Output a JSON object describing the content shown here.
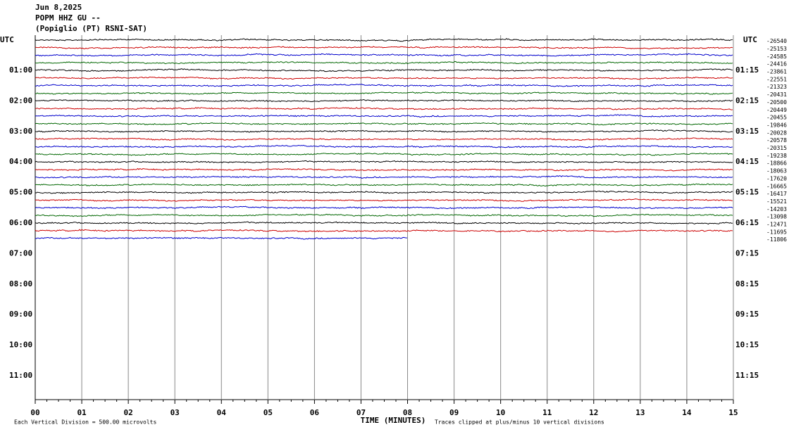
{
  "header": {
    "date": "Jun 8,2025",
    "station": "POPM HHZ GU --",
    "location": "(Popiglio (PT) RSNI-SAT)"
  },
  "left_axis": {
    "title": "UTC",
    "labels": [
      "01:00",
      "02:00",
      "03:00",
      "04:00",
      "05:00",
      "06:00",
      "07:00",
      "08:00",
      "09:00",
      "10:00",
      "11:00"
    ]
  },
  "right_axis": {
    "title": "UTC",
    "labels": [
      "01:15",
      "02:15",
      "03:15",
      "04:15",
      "05:15",
      "06:15",
      "07:15",
      "08:15",
      "09:15",
      "10:15",
      "11:15"
    ]
  },
  "x_axis": {
    "title": "TIME (MINUTES)",
    "ticks": [
      "00",
      "01",
      "02",
      "03",
      "04",
      "05",
      "06",
      "07",
      "08",
      "09",
      "10",
      "11",
      "12",
      "13",
      "14",
      "15"
    ]
  },
  "footer": {
    "scale_note": "Each Vertical Division =  500.00 microvolts",
    "clip_note": "Traces clipped at plus/minus 10 vertical divisions"
  },
  "trace_colors": [
    "#000000",
    "#cc0000",
    "#0000cc",
    "#006600"
  ],
  "traces": [
    {
      "label": "-26540"
    },
    {
      "label": "-25153"
    },
    {
      "label": "-24585"
    },
    {
      "label": "-24416"
    },
    {
      "label": "-23861"
    },
    {
      "label": "-22551"
    },
    {
      "label": "-21323"
    },
    {
      "label": "-20431"
    },
    {
      "label": "-20500"
    },
    {
      "label": "-20449"
    },
    {
      "label": "-20455"
    },
    {
      "label": "-19846"
    },
    {
      "label": "-20028"
    },
    {
      "label": "-20578"
    },
    {
      "label": "-20315"
    },
    {
      "label": "-19238"
    },
    {
      "label": "-18866"
    },
    {
      "label": "-18063"
    },
    {
      "label": "-17620"
    },
    {
      "label": "-16665"
    },
    {
      "label": "-16417"
    },
    {
      "label": "-15521"
    },
    {
      "label": "-14203"
    },
    {
      "label": "-13098"
    },
    {
      "label": "-12471"
    },
    {
      "label": "-11695"
    },
    {
      "label": "-11806",
      "end_minute": 8
    }
  ]
}
